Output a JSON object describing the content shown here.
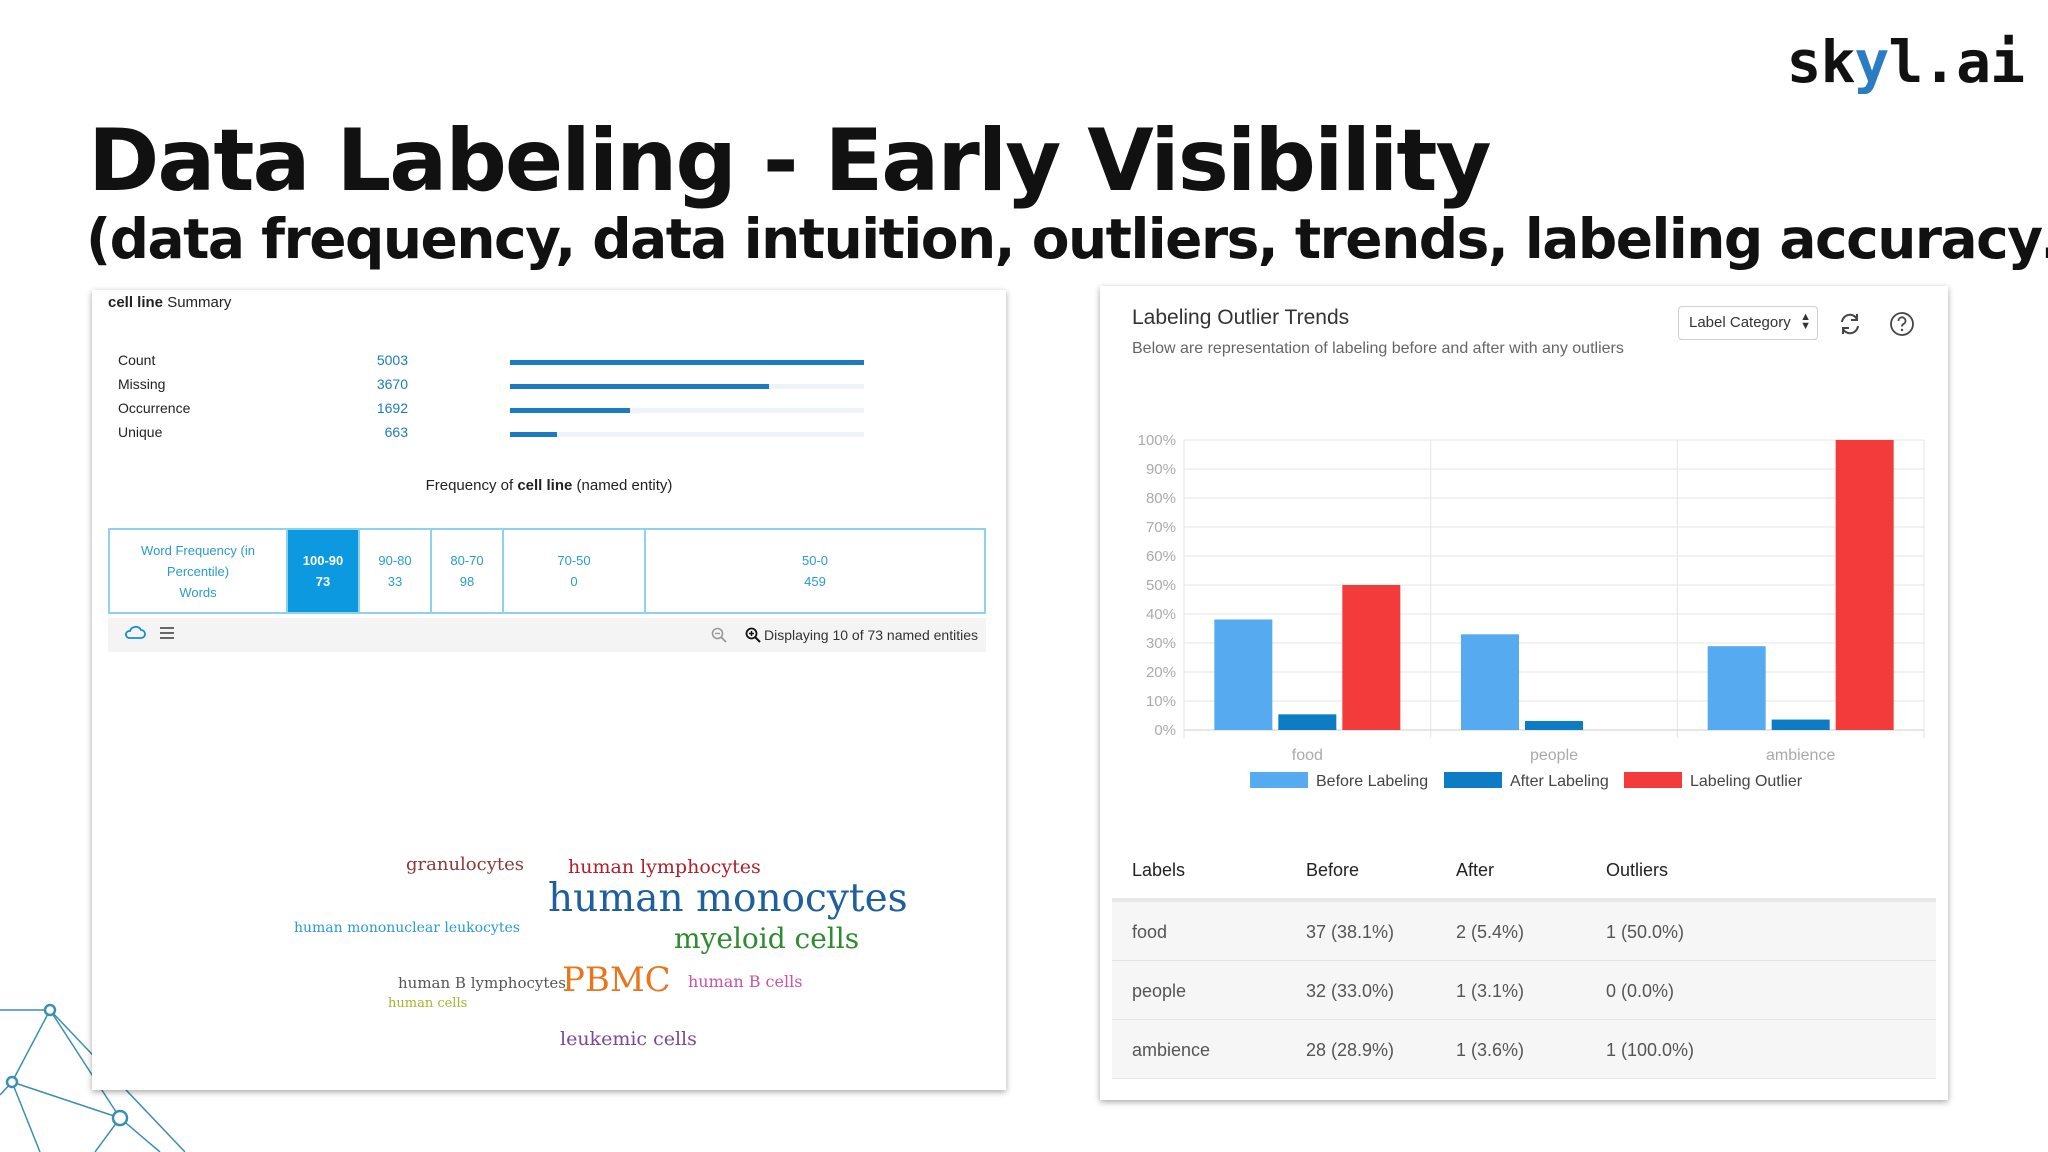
{
  "slide": {
    "logo_prefix": "sk",
    "logo_y": "y",
    "logo_suffix": "l.ai",
    "title": "Data Labeling - Early Visibility",
    "subtitle": "(data frequency, data intuition, outliers, trends, labeling accuracy…)"
  },
  "summary": {
    "title_bold": "cell line",
    "title_rest": " Summary",
    "stats": [
      {
        "label": "Count",
        "value": "5003",
        "fraction": 1.0
      },
      {
        "label": "Missing",
        "value": "3670",
        "fraction": 0.733
      },
      {
        "label": "Occurrence",
        "value": "1692",
        "fraction": 0.338
      },
      {
        "label": "Unique",
        "value": "663",
        "fraction": 0.133
      }
    ],
    "freq_caption_pre": "Frequency of ",
    "freq_caption_bold": "cell line",
    "freq_caption_post": " (named entity)",
    "freq_header": [
      "Word Frequency (in",
      "Percentile)",
      "Words"
    ],
    "freq_cells": [
      {
        "range": "100-90",
        "count": "73",
        "selected": true
      },
      {
        "range": "90-80",
        "count": "33",
        "selected": false
      },
      {
        "range": "80-70",
        "count": "98",
        "selected": false
      },
      {
        "range": "70-50",
        "count": "0",
        "selected": false
      },
      {
        "range": "50-0",
        "count": "459",
        "selected": false
      }
    ],
    "toolbar_icons": [
      "cloud-icon",
      "list-icon",
      "zoom-out-icon",
      "zoom-in-icon"
    ],
    "display_text": "Displaying 10 of 73 named entities",
    "accent_color": "#1c7bc0",
    "wordcloud": [
      {
        "text": "granulocytes",
        "color": "#8b3a3a"
      },
      {
        "text": "human lymphocytes",
        "color": "#b0202a"
      },
      {
        "text": "human monocytes",
        "color": "#1f5f9e"
      },
      {
        "text": "human mononuclear leukocytes",
        "color": "#2a9bd0"
      },
      {
        "text": "myeloid cells",
        "color": "#2e8b2e"
      },
      {
        "text": "human B lymphocytes",
        "color": "#555555"
      },
      {
        "text": "PBMC",
        "color": "#e8761c"
      },
      {
        "text": "human B cells",
        "color": "#cc4fa8"
      },
      {
        "text": "human cells",
        "color": "#a5b52a"
      },
      {
        "text": "leukemic cells",
        "color": "#7a4a9a"
      }
    ]
  },
  "outliers": {
    "title": "Labeling Outlier Trends",
    "subtitle": "Below are representation of labeling before and after with any outliers",
    "select_label": "Label Category",
    "icons": [
      "refresh-icon",
      "help-icon"
    ],
    "table": {
      "headers": [
        "Labels",
        "Before",
        "After",
        "Outliers"
      ],
      "rows": [
        [
          "food",
          "37 (38.1%)",
          "2 (5.4%)",
          "1 (50.0%)"
        ],
        [
          "people",
          "32 (33.0%)",
          "1 (3.1%)",
          "0 (0.0%)"
        ],
        [
          "ambience",
          "28 (28.9%)",
          "1 (3.6%)",
          "1 (100.0%)"
        ]
      ]
    }
  },
  "chart_data": {
    "type": "bar",
    "categories": [
      "food",
      "people",
      "ambience"
    ],
    "series": [
      {
        "name": "Before Labeling",
        "values": [
          38.1,
          33.0,
          28.9
        ],
        "color": "#55aaf0"
      },
      {
        "name": "After Labeling",
        "values": [
          5.4,
          3.1,
          3.6
        ],
        "color": "#0e7cc4"
      },
      {
        "name": "Labeling Outlier",
        "values": [
          50.0,
          0.0,
          100.0
        ],
        "color": "#f43b3b"
      }
    ],
    "y_ticks": [
      "0%",
      "10%",
      "20%",
      "30%",
      "40%",
      "50%",
      "60%",
      "70%",
      "80%",
      "90%",
      "100%"
    ],
    "ylim": [
      0,
      100
    ],
    "grid": true,
    "legend_position": "bottom"
  }
}
